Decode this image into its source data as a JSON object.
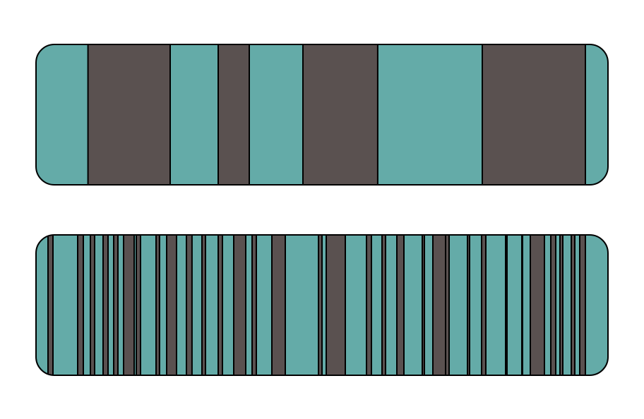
{
  "colors": {
    "teal": "#64ABA8",
    "dark": "#5A5150",
    "outline": "#000000",
    "background": "#FFFFFF"
  },
  "bars": [
    {
      "name": "upper-stripe-bar",
      "fill": "teal",
      "dark_intervals": [
        [
          0.0909,
          0.2346
        ],
        [
          0.3185,
          0.3728
        ],
        [
          0.4667,
          0.5975
        ],
        [
          0.7802,
          0.9605
        ]
      ]
    },
    {
      "name": "lower-stripe-bar",
      "fill": "teal",
      "dark_intervals": [
        [
          0.021,
          0.0296
        ],
        [
          0.0728,
          0.0827
        ],
        [
          0.0951,
          0.1025
        ],
        [
          0.1173,
          0.1259
        ],
        [
          0.1358,
          0.1432
        ],
        [
          0.1531,
          0.1716
        ],
        [
          0.1753,
          0.1827
        ],
        [
          0.2099,
          0.216
        ],
        [
          0.2284,
          0.2457
        ],
        [
          0.263,
          0.2728
        ],
        [
          0.2901,
          0.2963
        ],
        [
          0.3185,
          0.3259
        ],
        [
          0.3457,
          0.3667
        ],
        [
          0.3778,
          0.3852
        ],
        [
          0.4123,
          0.4358
        ],
        [
          0.4938,
          0.5
        ],
        [
          0.5074,
          0.5407
        ],
        [
          0.5778,
          0.5864
        ],
        [
          0.6049,
          0.6111
        ],
        [
          0.6309,
          0.6432
        ],
        [
          0.6753,
          0.679
        ],
        [
          0.6938,
          0.7222
        ],
        [
          0.716,
          0.7222
        ],
        [
          0.7543,
          0.758
        ],
        [
          0.779,
          0.7864
        ],
        [
          0.821,
          0.8235
        ],
        [
          0.8494,
          0.8506
        ],
        [
          0.8642,
          0.8889
        ],
        [
          0.9,
          0.9086
        ],
        [
          0.916,
          0.921
        ],
        [
          0.9358,
          0.942
        ],
        [
          0.9506,
          0.9605
        ]
      ]
    }
  ]
}
